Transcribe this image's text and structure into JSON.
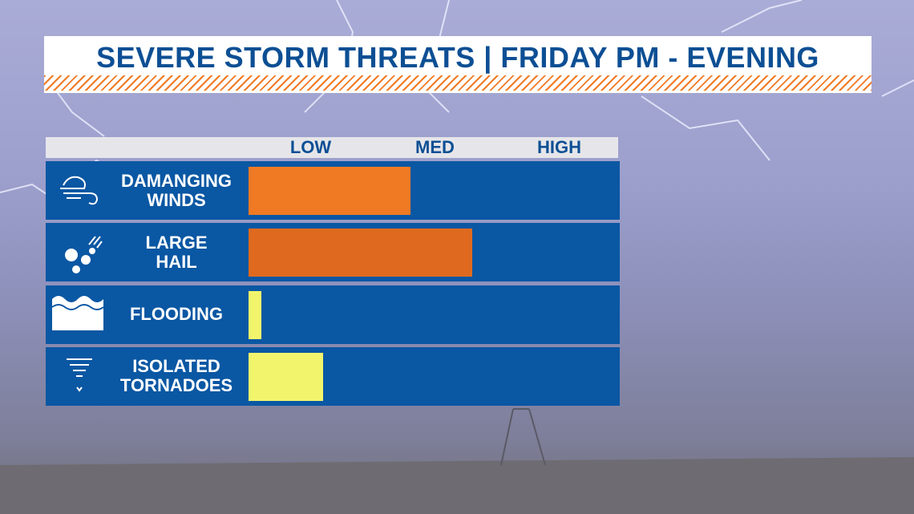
{
  "chart_data": {
    "type": "barh",
    "title": "SEVERE STORM THREATS | FRIDAY PM - EVENING",
    "categories": [
      "DAMANGING\nWINDS",
      "LARGE\nHAIL",
      "FLOODING",
      "ISOLATED\nTORNADOES"
    ],
    "values": [
      1.3,
      1.8,
      0.1,
      0.6
    ],
    "colors": [
      "#f07a24",
      "#df6a1f",
      "#f2f56c",
      "#f2f56c"
    ],
    "xlim": [
      0,
      3
    ],
    "xticks": [
      {
        "value": 0.5,
        "label": "LOW"
      },
      {
        "value": 1.5,
        "label": "MED"
      },
      {
        "value": 2.5,
        "label": "HIGH"
      }
    ]
  }
}
